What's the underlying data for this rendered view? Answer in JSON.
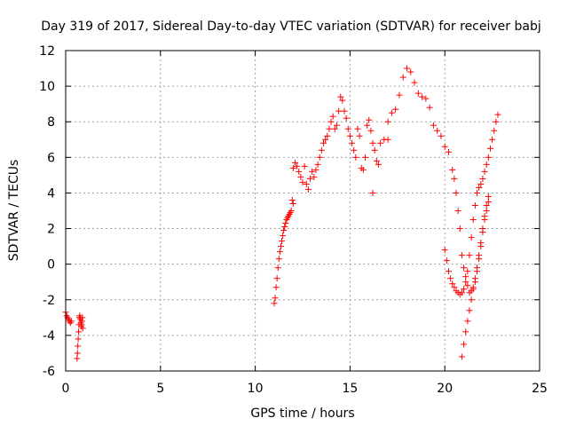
{
  "chart_data": {
    "type": "scatter",
    "title": "Day 319 of 2017, Sidereal Day-to-day VTEC variation (SDTVAR) for receiver babj",
    "xlabel": "GPS time / hours",
    "ylabel": "SDTVAR / TECUs",
    "xlim": [
      0,
      25
    ],
    "ylim": [
      -6,
      12
    ],
    "xticks": [
      "0",
      "5",
      "10",
      "15",
      "20",
      "25"
    ],
    "yticks": [
      "-6",
      "-4",
      "-2",
      "0",
      "2",
      "4",
      "6",
      "8",
      "10",
      "12"
    ],
    "grid": true,
    "marker": "+",
    "color": "#ff0000",
    "series": [
      {
        "x": [
          0.0,
          0.05,
          0.1,
          0.15,
          0.2,
          0.25,
          0.3,
          0.6,
          0.62,
          0.64,
          0.66,
          0.68,
          0.7,
          0.72,
          0.74,
          0.76,
          0.78,
          0.8,
          0.82,
          0.84,
          0.86,
          0.88,
          0.9,
          11.0,
          11.05,
          11.1,
          11.15,
          11.2,
          11.25,
          11.3,
          11.35,
          11.4,
          11.45,
          11.5,
          11.55,
          11.6,
          11.65,
          11.7,
          11.75,
          11.8,
          11.85,
          11.9,
          11.95,
          12.0,
          12.0,
          12.1,
          12.2,
          12.3,
          12.4,
          12.5,
          12.6,
          12.7,
          12.8,
          12.9,
          13.0,
          13.1,
          13.2,
          13.3,
          13.4,
          13.5,
          13.6,
          13.7,
          13.8,
          13.9,
          14.0,
          14.1,
          14.2,
          14.3,
          14.4,
          14.5,
          14.6,
          14.7,
          14.8,
          14.9,
          15.0,
          15.1,
          15.2,
          15.3,
          15.4,
          15.5,
          15.6,
          15.7,
          15.8,
          15.9,
          16.0,
          16.1,
          16.2,
          16.3,
          16.4,
          16.5,
          16.6,
          16.8,
          17.0,
          17.2,
          17.4,
          17.6,
          17.8,
          18.0,
          18.2,
          18.4,
          18.6,
          18.8,
          19.0,
          19.2,
          19.4,
          19.6,
          19.8,
          20.0,
          20.2,
          20.4,
          20.5,
          20.6,
          20.7,
          20.8,
          20.9,
          21.0,
          21.1,
          21.2,
          21.3,
          21.4,
          21.5,
          21.6,
          21.7,
          21.8,
          21.9,
          22.0,
          22.1,
          22.2,
          22.3,
          20.0,
          20.1,
          20.2,
          20.3,
          20.4,
          20.5,
          20.6,
          20.7,
          20.8,
          20.9,
          21.0,
          21.1,
          21.2,
          21.3,
          21.4,
          21.5,
          21.6,
          21.7,
          21.8,
          21.9,
          22.0,
          22.1,
          22.2,
          22.3,
          22.4,
          22.5,
          22.6,
          22.7,
          22.8,
          20.9,
          21.0,
          21.1,
          21.2,
          21.3,
          21.4,
          21.5,
          21.6,
          21.7,
          21.8,
          21.9,
          22.0,
          22.1,
          22.2,
          22.3,
          16.2,
          17.0
        ],
        "y": [
          -2.7,
          -2.9,
          -3.0,
          -3.1,
          -3.2,
          -3.3,
          -3.2,
          -5.3,
          -5.0,
          -4.6,
          -4.2,
          -3.8,
          -3.4,
          -3.0,
          -2.9,
          -3.0,
          -3.1,
          -3.3,
          -3.5,
          -3.4,
          -3.2,
          -3.0,
          -3.6,
          -2.2,
          -1.9,
          -1.3,
          -0.8,
          -0.2,
          0.3,
          0.7,
          1.0,
          1.3,
          1.6,
          1.9,
          2.1,
          2.3,
          2.5,
          2.6,
          2.7,
          2.8,
          2.9,
          3.0,
          3.6,
          3.4,
          5.4,
          5.7,
          5.5,
          5.2,
          4.9,
          4.6,
          5.5,
          4.5,
          4.2,
          4.8,
          5.2,
          4.9,
          5.3,
          5.6,
          6.0,
          6.4,
          6.8,
          7.0,
          7.2,
          7.6,
          8.0,
          8.3,
          7.6,
          7.8,
          8.6,
          9.4,
          9.2,
          8.6,
          8.2,
          7.6,
          7.2,
          6.8,
          6.4,
          6.0,
          7.6,
          7.2,
          5.4,
          5.3,
          6.0,
          7.8,
          8.1,
          7.5,
          6.8,
          6.4,
          5.8,
          5.6,
          6.8,
          7.0,
          8.0,
          8.5,
          8.7,
          9.5,
          10.5,
          11.0,
          10.8,
          10.2,
          9.6,
          9.4,
          9.3,
          8.8,
          7.8,
          7.5,
          7.2,
          6.6,
          6.3,
          5.3,
          4.8,
          4.0,
          3.0,
          2.0,
          0.5,
          -0.2,
          -0.7,
          -1.2,
          -1.6,
          -1.5,
          -1.3,
          -1.0,
          -0.4,
          0.3,
          1.0,
          1.8,
          2.5,
          3.0,
          3.5,
          0.8,
          0.2,
          -0.4,
          -0.8,
          -1.1,
          -1.3,
          -1.5,
          -1.6,
          -1.7,
          -1.6,
          -1.4,
          -1.0,
          -0.4,
          0.5,
          1.5,
          2.5,
          3.3,
          4.0,
          4.3,
          4.5,
          4.8,
          5.2,
          5.6,
          6.0,
          6.5,
          7.0,
          7.5,
          8.0,
          8.4,
          -5.2,
          -4.5,
          -3.8,
          -3.2,
          -2.6,
          -2.0,
          -1.4,
          -0.8,
          -0.2,
          0.5,
          1.2,
          2.0,
          2.7,
          3.3,
          3.8,
          4.0,
          7.0
        ]
      }
    ]
  }
}
